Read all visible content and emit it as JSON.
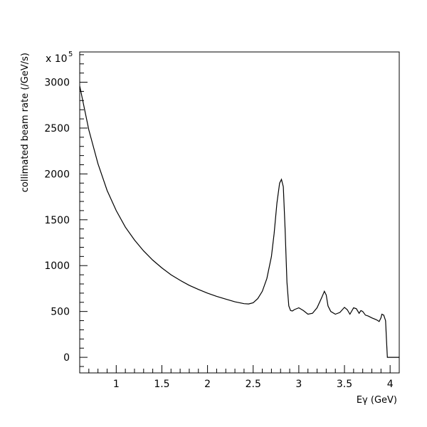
{
  "chart_data": {
    "type": "line",
    "title": "",
    "xlabel": "Eγ (GeV)",
    "ylabel": "collimated beam rate (/GeV/s)",
    "y_multiplier_label": "x 10",
    "y_multiplier_exponent": "5",
    "xlim": [
      0.6,
      4.1
    ],
    "ylim": [
      -170,
      3330
    ],
    "x_ticks": [
      1,
      1.5,
      2,
      2.5,
      3,
      3.5,
      4
    ],
    "x_tick_labels": [
      "1",
      "1.5",
      "2",
      "2.5",
      "3",
      "3.5",
      "4"
    ],
    "y_ticks": [
      0,
      500,
      1000,
      1500,
      2000,
      2500,
      3000
    ],
    "y_tick_labels": [
      "0",
      "500",
      "1000",
      "1500",
      "2000",
      "2500",
      "3000"
    ],
    "grid": false,
    "line_color": "#000000",
    "series": [
      {
        "x": [
          0.6,
          0.7,
          0.8,
          0.9,
          1.0,
          1.1,
          1.2,
          1.3,
          1.4,
          1.5,
          1.6,
          1.7,
          1.8,
          1.9,
          2.0,
          2.1,
          2.2,
          2.3,
          2.4,
          2.45,
          2.5,
          2.55,
          2.6,
          2.65,
          2.7,
          2.73,
          2.76,
          2.79,
          2.81,
          2.83,
          2.85,
          2.87,
          2.89,
          2.91,
          2.93,
          2.95,
          3.0,
          3.05,
          3.1,
          3.15,
          3.2,
          3.25,
          3.28,
          3.3,
          3.32,
          3.35,
          3.4,
          3.45,
          3.5,
          3.53,
          3.56,
          3.6,
          3.63,
          3.66,
          3.68,
          3.7,
          3.73,
          3.76,
          3.8,
          3.85,
          3.88,
          3.9,
          3.91,
          3.93,
          3.95,
          3.96,
          3.97,
          4.0,
          4.05,
          4.1
        ],
        "y": [
          2960,
          2480,
          2110,
          1820,
          1600,
          1420,
          1280,
          1160,
          1060,
          975,
          900,
          840,
          785,
          740,
          700,
          665,
          635,
          605,
          585,
          582,
          595,
          640,
          720,
          860,
          1100,
          1350,
          1680,
          1900,
          1940,
          1860,
          1400,
          820,
          560,
          510,
          505,
          520,
          540,
          510,
          470,
          480,
          540,
          650,
          720,
          680,
          560,
          500,
          470,
          490,
          545,
          520,
          470,
          540,
          530,
          480,
          510,
          500,
          460,
          450,
          430,
          410,
          390,
          430,
          470,
          460,
          400,
          200,
          0,
          0,
          0,
          0
        ]
      }
    ]
  }
}
